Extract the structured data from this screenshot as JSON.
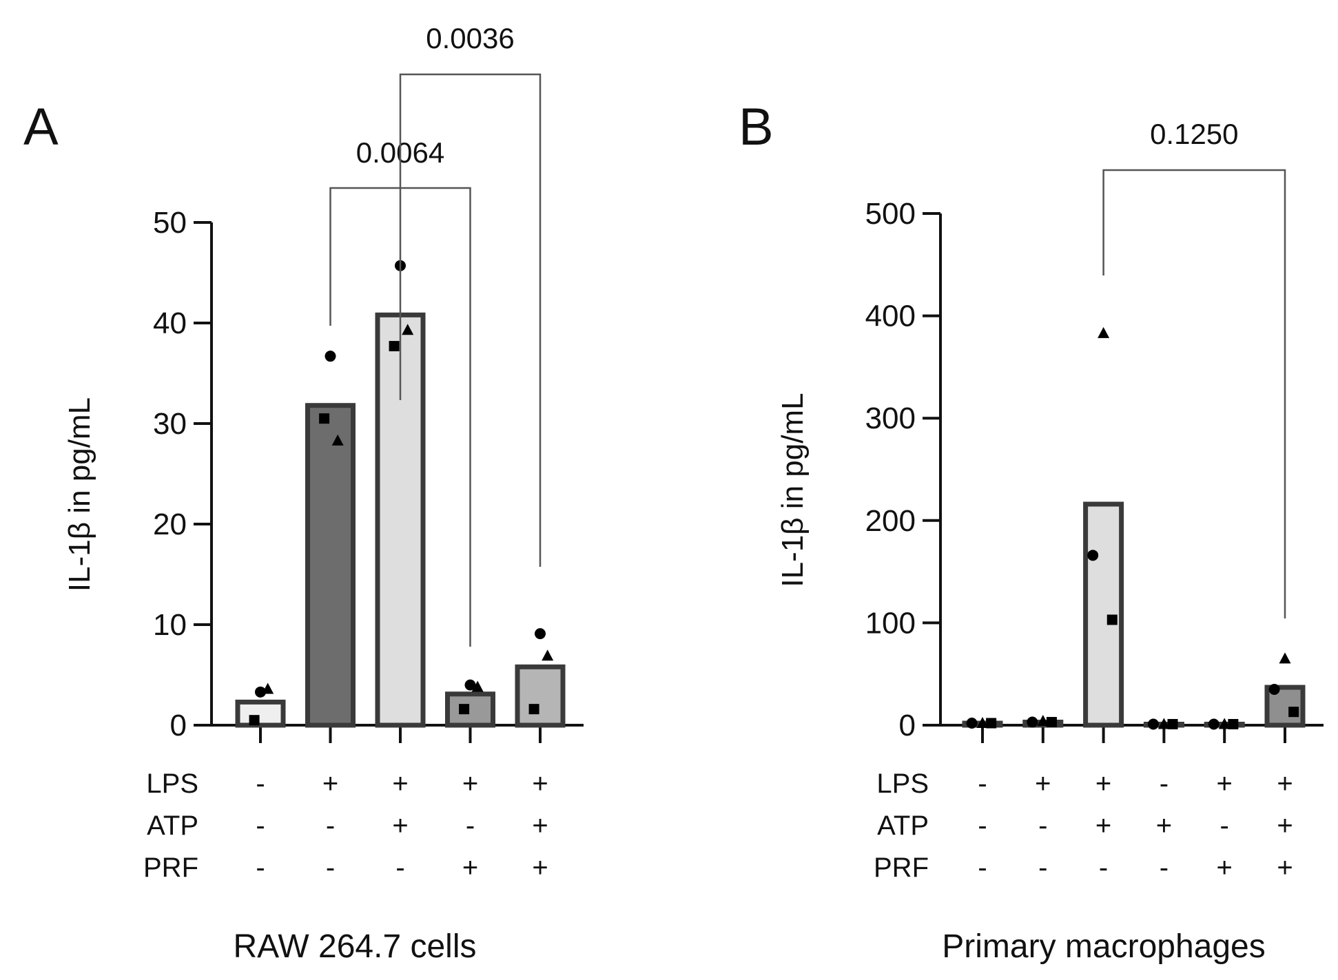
{
  "chart_data": [
    {
      "type": "bar",
      "panel": "A",
      "title": "",
      "xlabel": "RAW 264.7 cells",
      "ylabel": "IL-1β in pg/mL",
      "ylim": [
        0,
        50
      ],
      "yticks": [
        0,
        10,
        20,
        30,
        40,
        50
      ],
      "row_labels": [
        "LPS",
        "ATP",
        "PRF"
      ],
      "groups": [
        {
          "LPS": "-",
          "ATP": "-",
          "PRF": "-",
          "mean": 2.3,
          "fill": "#efefef",
          "points": {
            "circle": 3.3,
            "square": 0.5,
            "triangle": 3.6
          }
        },
        {
          "LPS": "+",
          "ATP": "-",
          "PRF": "-",
          "mean": 31.8,
          "fill": "#6d6d6d",
          "points": {
            "circle": 36.7,
            "square": 30.5,
            "triangle": 28.3
          }
        },
        {
          "LPS": "+",
          "ATP": "+",
          "PRF": "-",
          "mean": 40.8,
          "fill": "#dedede",
          "points": {
            "circle": 45.7,
            "square": 37.7,
            "triangle": 39.3
          }
        },
        {
          "LPS": "+",
          "ATP": "-",
          "PRF": "+",
          "mean": 3.1,
          "fill": "#999999",
          "points": {
            "circle": 4.0,
            "square": 1.6,
            "triangle": 3.8
          }
        },
        {
          "LPS": "+",
          "ATP": "+",
          "PRF": "+",
          "mean": 5.8,
          "fill": "#b5b5b5",
          "points": {
            "circle": 9.1,
            "square": 1.6,
            "triangle": 6.9
          }
        }
      ],
      "comparisons": [
        {
          "from": 1,
          "to": 3,
          "label": "0.0064"
        },
        {
          "from": 2,
          "to": 4,
          "label": "0.0036"
        }
      ]
    },
    {
      "type": "bar",
      "panel": "B",
      "title": "",
      "xlabel": "Primary macrophages",
      "ylabel": "IL-1β in pg/mL",
      "ylim": [
        0,
        500
      ],
      "yticks": [
        0,
        100,
        200,
        300,
        400,
        500
      ],
      "row_labels": [
        "LPS",
        "ATP",
        "PRF"
      ],
      "groups": [
        {
          "LPS": "-",
          "ATP": "-",
          "PRF": "-",
          "mean": 2,
          "fill": "#efefef",
          "points": {
            "circle": 2,
            "square": 2,
            "triangle": 2
          }
        },
        {
          "LPS": "+",
          "ATP": "-",
          "PRF": "-",
          "mean": 3,
          "fill": "#6d6d6d",
          "points": {
            "circle": 3,
            "square": 3,
            "triangle": 4
          }
        },
        {
          "LPS": "+",
          "ATP": "+",
          "PRF": "-",
          "mean": 216,
          "fill": "#dedede",
          "points": {
            "circle": 166,
            "square": 103,
            "triangle": 383
          }
        },
        {
          "LPS": "-",
          "ATP": "+",
          "PRF": "-",
          "mean": 1,
          "fill": "#bdbdbd",
          "points": {
            "circle": 1,
            "square": 1,
            "triangle": 1
          }
        },
        {
          "LPS": "+",
          "ATP": "-",
          "PRF": "+",
          "mean": 1,
          "fill": "#999999",
          "points": {
            "circle": 1,
            "square": 1,
            "triangle": 1
          }
        },
        {
          "LPS": "+",
          "ATP": "+",
          "PRF": "+",
          "mean": 37,
          "fill": "#8f8f8f",
          "points": {
            "circle": 35,
            "square": 13,
            "triangle": 65
          }
        }
      ],
      "comparisons": [
        {
          "from": 2,
          "to": 5,
          "label": "0.1250"
        }
      ]
    }
  ]
}
